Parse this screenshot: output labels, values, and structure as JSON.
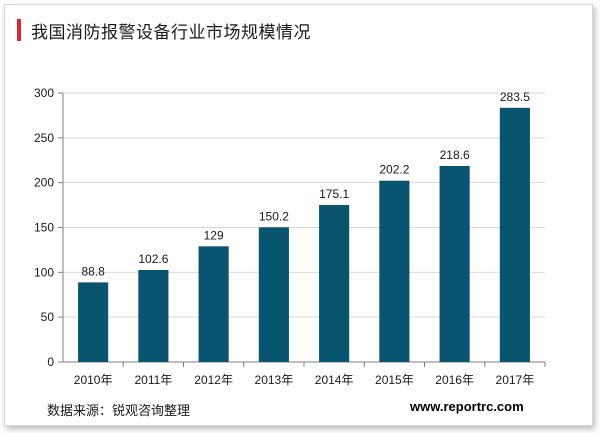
{
  "header": {
    "title": "我国消防报警设备行业市场规模情况"
  },
  "footer": {
    "source": "数据来源：锐观咨询整理",
    "website": "www.reportrc.com"
  },
  "colors": {
    "bar": "#09546e",
    "accent": "#e3262f",
    "grid": "#d9d9d9",
    "axis": "#7f7f7f"
  },
  "chart_data": {
    "type": "bar",
    "title": "我国消防报警设备行业市场规模情况",
    "xlabel": "",
    "ylabel": "",
    "categories": [
      "2010年",
      "2011年",
      "2012年",
      "2013年",
      "2014年",
      "2015年",
      "2016年",
      "2017年"
    ],
    "values": [
      88.8,
      102.6,
      129,
      150.2,
      175.1,
      202.2,
      218.6,
      283.5
    ],
    "value_labels": [
      "88.8",
      "102.6",
      "129",
      "150.2",
      "175.1",
      "202.2",
      "218.6",
      "283.5"
    ],
    "ylim": [
      0,
      300
    ],
    "yticks": [
      "0",
      "50",
      "100",
      "150",
      "200",
      "250",
      "300"
    ],
    "grid": true,
    "legend": "none"
  }
}
